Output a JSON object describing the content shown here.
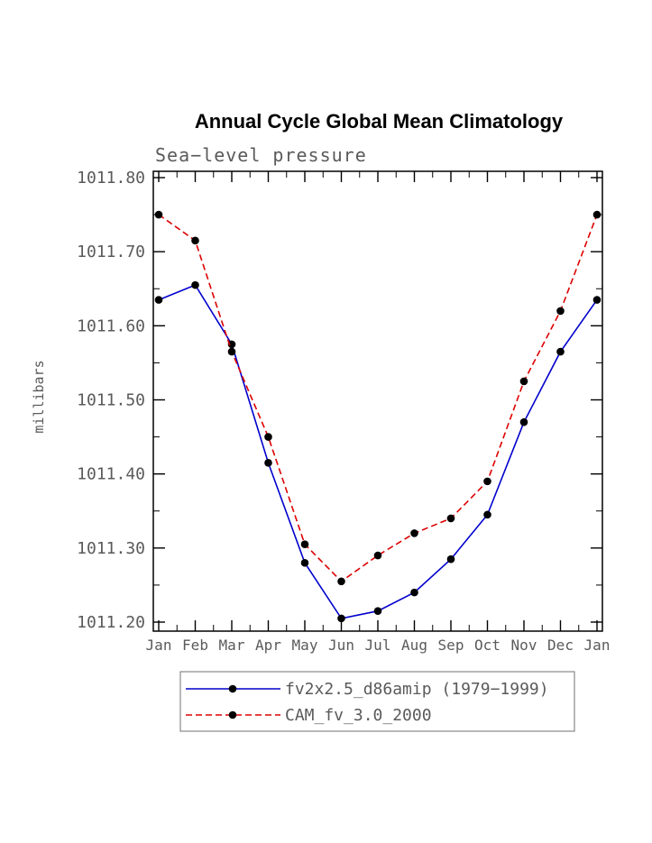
{
  "title": "Annual Cycle Global Mean Climatology",
  "subtitle": "Sea−level pressure",
  "ylabel": "millibars",
  "chart_data": {
    "type": "line",
    "categories": [
      "Jan",
      "Feb",
      "Mar",
      "Apr",
      "May",
      "Jun",
      "Jul",
      "Aug",
      "Sep",
      "Oct",
      "Nov",
      "Dec",
      "Jan"
    ],
    "series": [
      {
        "name": "fv2x2.5_d86amip (1979−1999)",
        "color": "#0000cc",
        "line_style": "solid",
        "marker": "filled-circle",
        "marker_color": "#000000",
        "values": [
          1011.635,
          1011.655,
          1011.575,
          1011.415,
          1011.28,
          1011.205,
          1011.215,
          1011.24,
          1011.285,
          1011.345,
          1011.47,
          1011.565,
          1011.635
        ]
      },
      {
        "name": "CAM_fv_3.0_2000",
        "color": "#dd0000",
        "line_style": "dashed",
        "marker": "filled-circle",
        "marker_color": "#000000",
        "values": [
          1011.75,
          1011.715,
          1011.565,
          1011.45,
          1011.305,
          1011.255,
          1011.29,
          1011.32,
          1011.34,
          1011.39,
          1011.525,
          1011.62,
          1011.75
        ]
      }
    ],
    "xlabel": "",
    "ylim": [
      1011.2,
      1011.8
    ],
    "yticks": [
      1011.2,
      1011.3,
      1011.4,
      1011.5,
      1011.6,
      1011.7,
      1011.8
    ],
    "ytick_format": "fixed2",
    "grid": false,
    "legend_position": "bottom",
    "axis_text_color": "#5a5a5a",
    "frame_color": "#000000"
  }
}
